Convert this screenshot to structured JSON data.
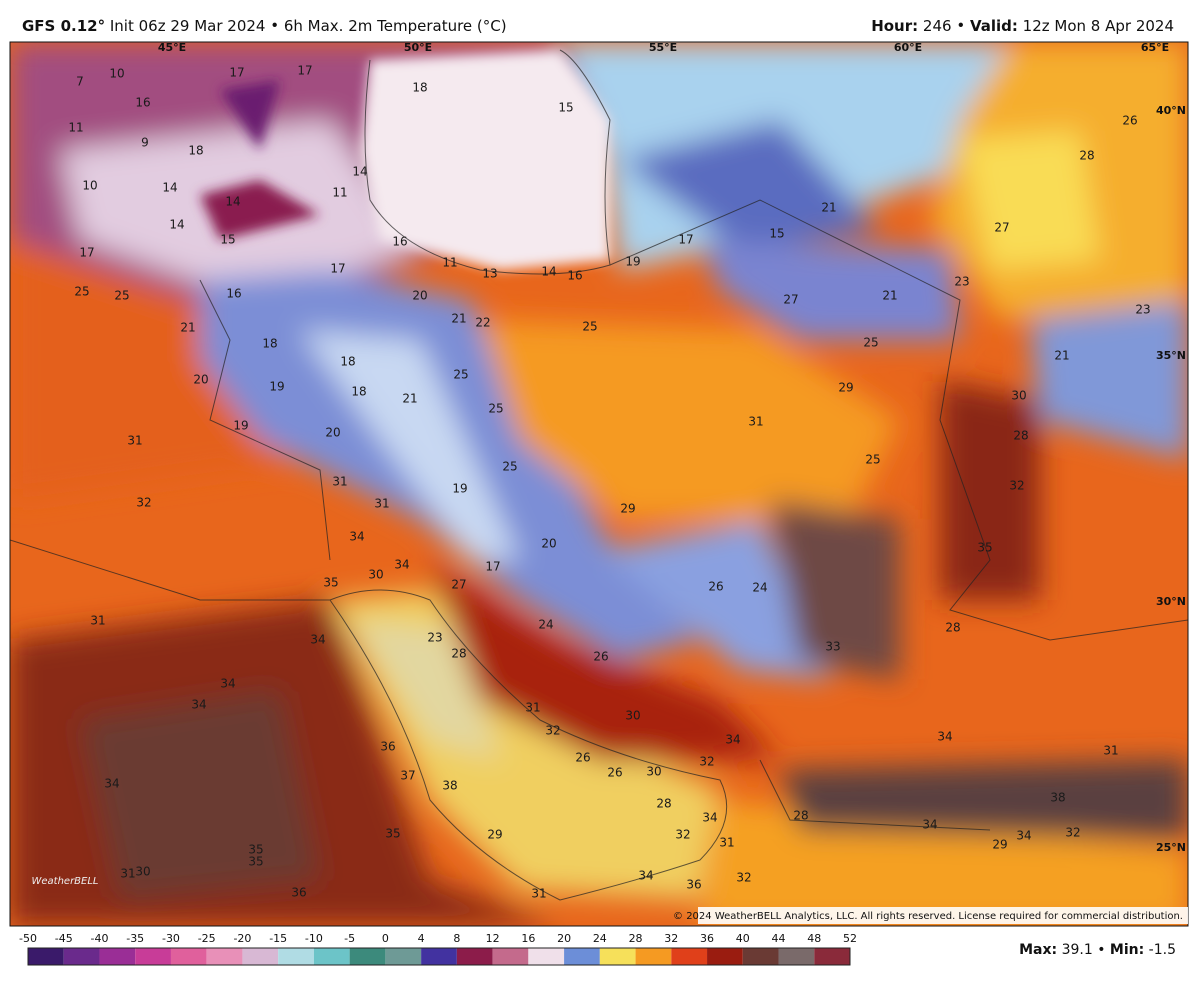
{
  "header": {
    "model": "GFS 0.12°",
    "init": "Init 06z 29 Mar 2024",
    "field": "6h Max. 2m Temperature (°C)",
    "hour_label": "Hour:",
    "hour": "246",
    "valid_label": "Valid:",
    "valid": "12z Mon 8 Apr 2024"
  },
  "map": {
    "lon_labels": [
      "45°E",
      "50°E",
      "55°E",
      "60°E",
      "65°E"
    ],
    "lat_labels": [
      "40°N",
      "35°N",
      "30°N",
      "25°N"
    ],
    "temperature_labels": [
      7,
      10,
      17,
      17,
      18,
      16,
      11,
      9,
      18,
      15,
      26,
      28,
      10,
      14,
      14,
      11,
      14,
      14,
      15,
      16,
      17,
      15,
      21,
      27,
      17,
      17,
      11,
      13,
      14,
      16,
      19,
      25,
      25,
      16,
      20,
      27,
      21,
      23,
      23,
      21,
      21,
      22,
      25,
      25,
      18,
      18,
      21,
      20,
      25,
      19,
      18,
      29,
      30,
      21,
      25,
      31,
      28,
      19,
      20,
      31,
      25,
      25,
      32,
      31,
      31,
      19,
      32,
      29,
      34,
      20,
      35,
      34,
      17,
      35,
      30,
      27,
      26,
      24,
      31,
      28,
      34,
      23,
      24,
      33,
      28,
      26,
      34,
      34,
      31,
      30,
      32,
      34,
      36,
      31,
      34,
      32,
      37,
      26,
      26,
      30,
      34,
      38,
      28,
      38,
      28,
      34,
      34,
      35,
      29,
      32,
      34,
      32,
      29,
      31,
      35,
      35,
      31,
      30,
      34,
      36,
      32,
      36,
      31
    ],
    "logo": "WeatherBELL",
    "copyright": "© 2024 WeatherBELL Analytics, LLC. All rights reserved. License required for commercial distribution."
  },
  "colorbar": {
    "ticks": [
      -50,
      -45,
      -40,
      -35,
      -30,
      -25,
      -20,
      -15,
      -10,
      -5,
      0,
      4,
      8,
      12,
      16,
      20,
      24,
      28,
      32,
      36,
      40,
      44,
      48,
      52
    ]
  },
  "footer": {
    "max_label": "Max:",
    "max": 39.1,
    "min_label": "Min:",
    "min": -1.5
  }
}
